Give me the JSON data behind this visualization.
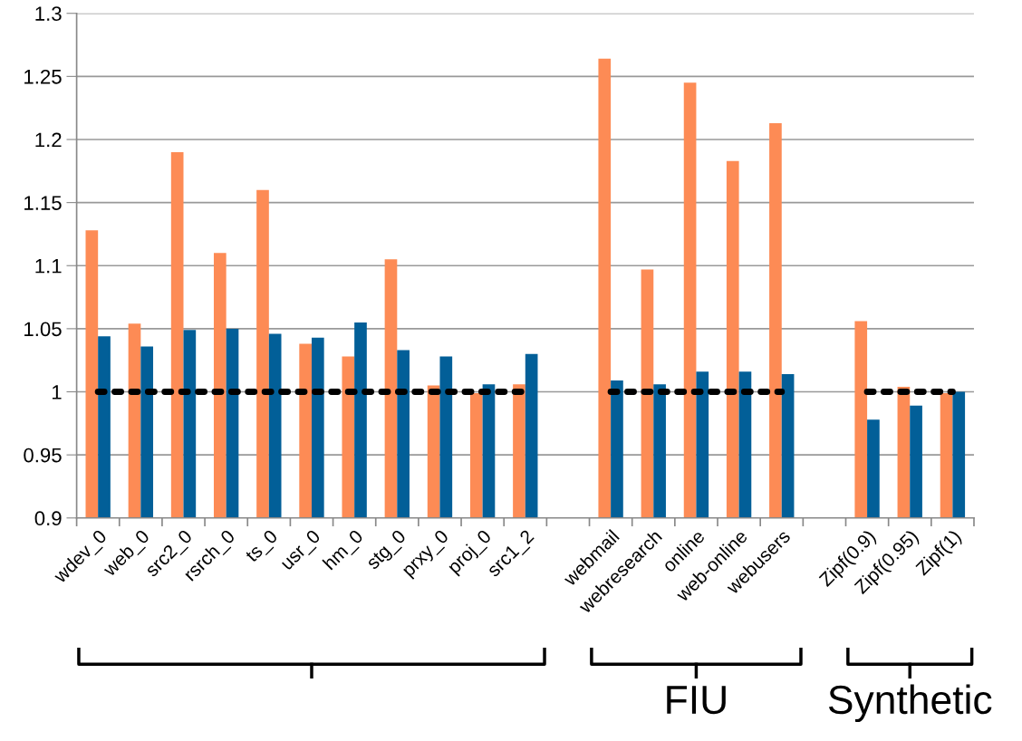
{
  "chart_data": {
    "type": "bar",
    "categories": [
      "wdev_0",
      "web_0",
      "src2_0",
      "rsrch_0",
      "ts_0",
      "usr_0",
      "hm_0",
      "stg_0",
      "prxy_0",
      "proj_0",
      "src1_2",
      null,
      "webmail",
      "webresearch",
      "online",
      "web-online",
      "webusers",
      null,
      "Zipf(0.9)",
      "Zipf(0.95)",
      "Zipf(1)"
    ],
    "series": [
      {
        "color": "#fd8b55",
        "values": [
          1.128,
          1.054,
          1.19,
          1.11,
          1.16,
          1.038,
          1.028,
          1.105,
          1.005,
          0.999,
          1.006,
          null,
          1.264,
          1.097,
          1.245,
          1.183,
          1.213,
          null,
          1.056,
          1.004,
          0.999
        ]
      },
      {
        "color": "#025f98",
        "values": [
          1.044,
          1.036,
          1.049,
          1.05,
          1.046,
          1.043,
          1.055,
          1.033,
          1.028,
          1.006,
          1.03,
          null,
          1.009,
          1.006,
          1.016,
          1.016,
          1.014,
          null,
          0.978,
          0.989,
          1.0
        ]
      },
      {
        "type": "line",
        "color": "#000000",
        "line_style": "dotted",
        "values": [
          1,
          1,
          1,
          1,
          1,
          1,
          1,
          1,
          1,
          1,
          1,
          null,
          1,
          1,
          1,
          1,
          1,
          null,
          1,
          1,
          1
        ]
      }
    ],
    "ylim": [
      0.9,
      1.3
    ],
    "yticks": [
      0.9,
      0.95,
      1,
      1.05,
      1.1,
      1.15,
      1.2,
      1.25,
      1.3
    ],
    "grid": "y",
    "annotations": [
      "FIU",
      "Synthetic"
    ]
  }
}
